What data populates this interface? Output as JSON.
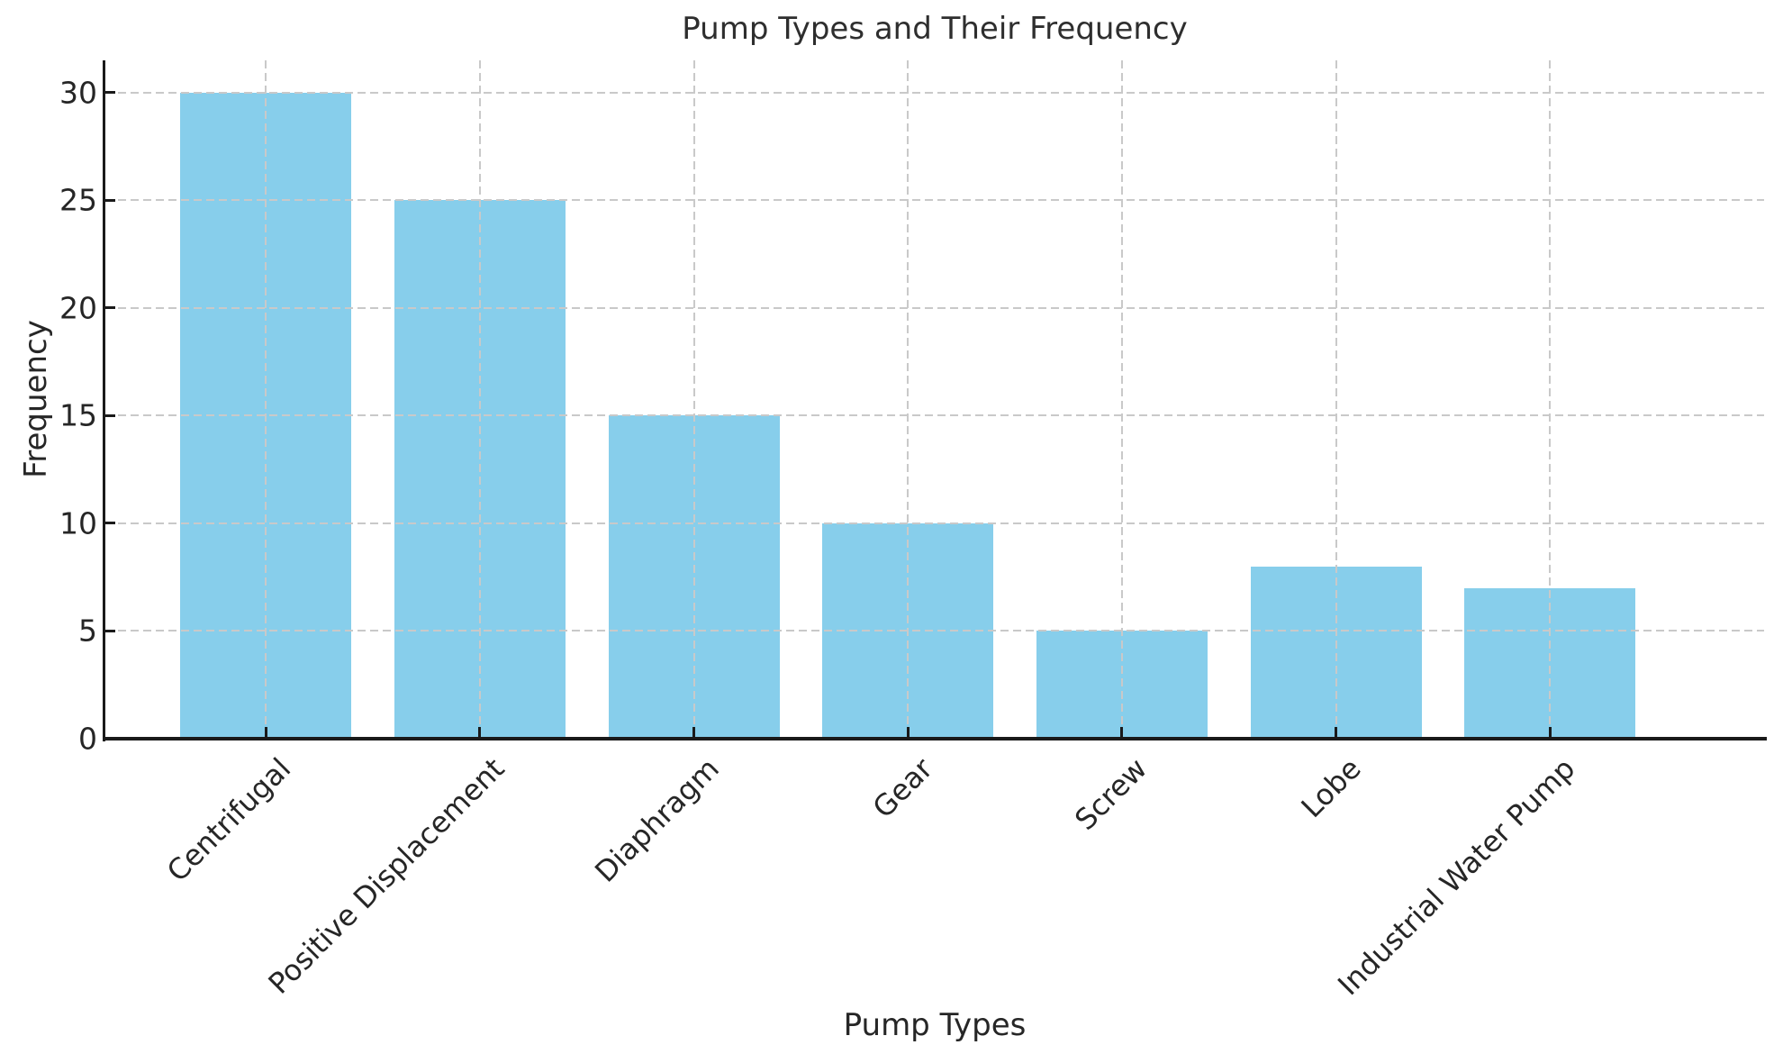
{
  "chart_data": {
    "type": "bar",
    "title": "Pump Types and Their Frequency",
    "xlabel": "Pump Types",
    "ylabel": "Frequency",
    "categories": [
      "Centrifugal",
      "Positive Displacement",
      "Diaphragm",
      "Gear",
      "Screw",
      "Lobe",
      "Industrial Water Pump"
    ],
    "values": [
      30,
      25,
      15,
      10,
      5,
      8,
      7
    ],
    "yticks": [
      0,
      5,
      10,
      15,
      20,
      25,
      30
    ],
    "ylim": [
      0,
      31.5
    ],
    "x_tick_rotation": 45,
    "grid": "dashed",
    "legend": "none",
    "bar_color": "#87CEEB",
    "grid_color": "#c9c9c9",
    "axis_color": "#1a1a1a",
    "text_color": "#262626",
    "background_color": "#ffffff"
  }
}
